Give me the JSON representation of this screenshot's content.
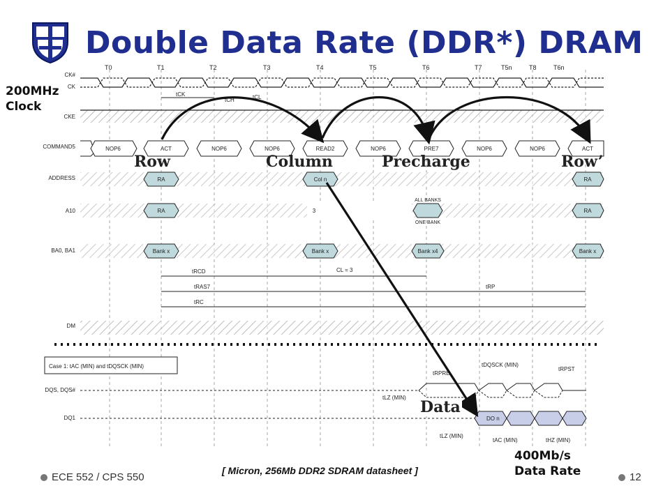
{
  "title": "Double Data Rate (DDR*) DRAM",
  "labels": {
    "clock_line1": "200MHz",
    "clock_line2": "Clock",
    "row": "Row",
    "column": "Column",
    "precharge": "Precharge",
    "row_prime": "Row’",
    "data": "Data",
    "rate_line1": "400Mb/s",
    "rate_line2": "Data Rate"
  },
  "citation": "[ Micron, 256Mb DDR2 SDRAM datasheet ]",
  "footer": {
    "course": "ECE 552 / CPS 550",
    "page": "12"
  },
  "timing": {
    "clock_edges": [
      "T0",
      "T1",
      "T2",
      "T3",
      "T4",
      "T5",
      "T6",
      "T7",
      "T5n",
      "T8",
      "T6n"
    ],
    "signals": [
      "CK#",
      "CK",
      "CKE",
      "COMMAND5",
      "ADDRESS",
      "A10",
      "BA0, BA1",
      "DM",
      "DQS, DQS#",
      "DQ1"
    ],
    "commands": [
      "NOP6",
      "ACT",
      "NOP6",
      "NOP6",
      "NOP6",
      "READ2",
      "NOP6",
      "PRE7",
      "NOP6",
      "NOP6",
      "ACT"
    ],
    "address": [
      "RA",
      "Col n",
      "RA"
    ],
    "a10": [
      "RA",
      "3",
      "ALL BANKS",
      "ONE BANK",
      "RA"
    ],
    "bank": [
      "Bank x",
      "Bank x",
      "Bank x4",
      "Bank x"
    ],
    "params": [
      "tCK",
      "tCH",
      "tCL",
      "tRCD",
      "tRAS7",
      "tRC",
      "CL = 3",
      "tRP"
    ],
    "case_note": "Case 1: tAC (MIN) and tDQSCK (MIN)",
    "bottom_params": [
      "tRPRE",
      "tDQSCK (MIN)",
      "tRPST",
      "tLZ (MIN)",
      "tLZ (MIN)",
      "tAC (MIN)",
      "tHZ (MIN)"
    ],
    "dq_label": "DO n"
  }
}
